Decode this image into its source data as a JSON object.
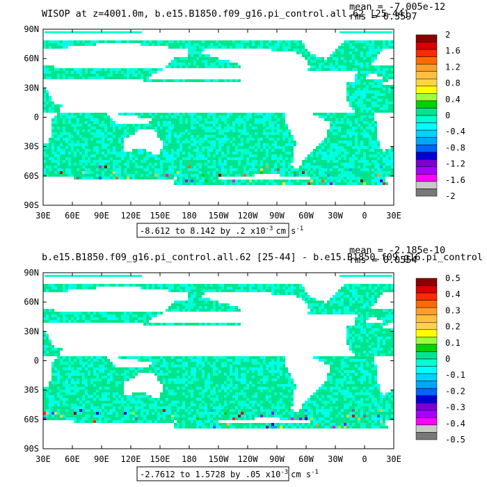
{
  "panels": [
    {
      "title": "WISOP at z=4001.0m, b.e15.B1850.f09_g16.pi_control.all.62 [25-44]",
      "stats": [
        "mean = -7.005e-12",
        "rms = 0.3597"
      ],
      "range_label": "-8.612 to 8.142 by .2 x10",
      "range_exp": "-3",
      "range_units": "cm s",
      "range_units_exp": "-1",
      "cbar_labels": [
        "2",
        "1.6",
        "1.2",
        "0.8",
        "0.4",
        "0",
        "-0.4",
        "-0.8",
        "-1.2",
        "-1.6",
        "-2"
      ]
    },
    {
      "title": "b.e15.B1850.f09_g16.pi_control.all.62 [25-44] - b.e15.B1850.f09_g16.pi_control",
      "stats": [
        "mean = -2.185e-10",
        "rms = 0.0554"
      ],
      "range_label": "-2.7612 to 1.5728 by .05 x10",
      "range_exp": "-3",
      "range_units": "cm s",
      "range_units_exp": "-1",
      "cbar_labels": [
        "0.5",
        "0.4",
        "0.3",
        "0.2",
        "0.1",
        "0",
        "-0.1",
        "-0.2",
        "-0.3",
        "-0.4",
        "-0.5"
      ]
    }
  ],
  "colorbar_colors": [
    "#8c0000",
    "#d80000",
    "#ff2a00",
    "#ff6a00",
    "#ff9f2a",
    "#ffbf3f",
    "#ffd24a",
    "#ffff00",
    "#9cff3f",
    "#00d200",
    "#00e58c",
    "#00ffd2",
    "#00ffff",
    "#00d2ff",
    "#00a5ff",
    "#0064ff",
    "#0000d2",
    "#7a00d2",
    "#a500ff",
    "#ff00ff",
    "#c8c8c8",
    "#787878"
  ],
  "chart_data": [
    {
      "type": "heatmap",
      "title": "WISOP at z=4001.0m, b.e15.B1850.f09_g16.pi_control.all.62 [25-44]",
      "x_ticks": [
        "30E",
        "60E",
        "90E",
        "120E",
        "150E",
        "180",
        "150W",
        "120W",
        "90W",
        "60W",
        "30W",
        "0",
        "30E"
      ],
      "y_ticks": [
        "90N",
        "60N",
        "30N",
        "0",
        "30S",
        "60S",
        "90S"
      ],
      "colorbar_levels": [
        2,
        1.6,
        1.2,
        0.8,
        0.4,
        0,
        -0.4,
        -0.8,
        -1.2,
        -1.6,
        -2
      ],
      "mean": -7.005e-12,
      "rms": 0.3597,
      "min": -8.612,
      "max": 8.142,
      "interval": 0.2,
      "scale": "x10^-3",
      "units": "cm s^-1"
    },
    {
      "type": "heatmap",
      "title": "b.e15.B1850.f09_g16.pi_control.all.62 [25-44] - b.e15.B1850.f09_g16.pi_control",
      "x_ticks": [
        "30E",
        "60E",
        "90E",
        "120E",
        "150E",
        "180",
        "150W",
        "120W",
        "90W",
        "60W",
        "30W",
        "0",
        "30E"
      ],
      "y_ticks": [
        "90N",
        "60N",
        "30N",
        "0",
        "30S",
        "60S",
        "90S"
      ],
      "colorbar_levels": [
        0.5,
        0.4,
        0.3,
        0.2,
        0.1,
        0,
        -0.1,
        -0.2,
        -0.3,
        -0.4,
        -0.5
      ],
      "mean": -2.185e-10,
      "rms": 0.0554,
      "min": -2.7612,
      "max": 1.5728,
      "interval": 0.05,
      "scale": "x10^-3",
      "units": "cm s^-1"
    }
  ]
}
